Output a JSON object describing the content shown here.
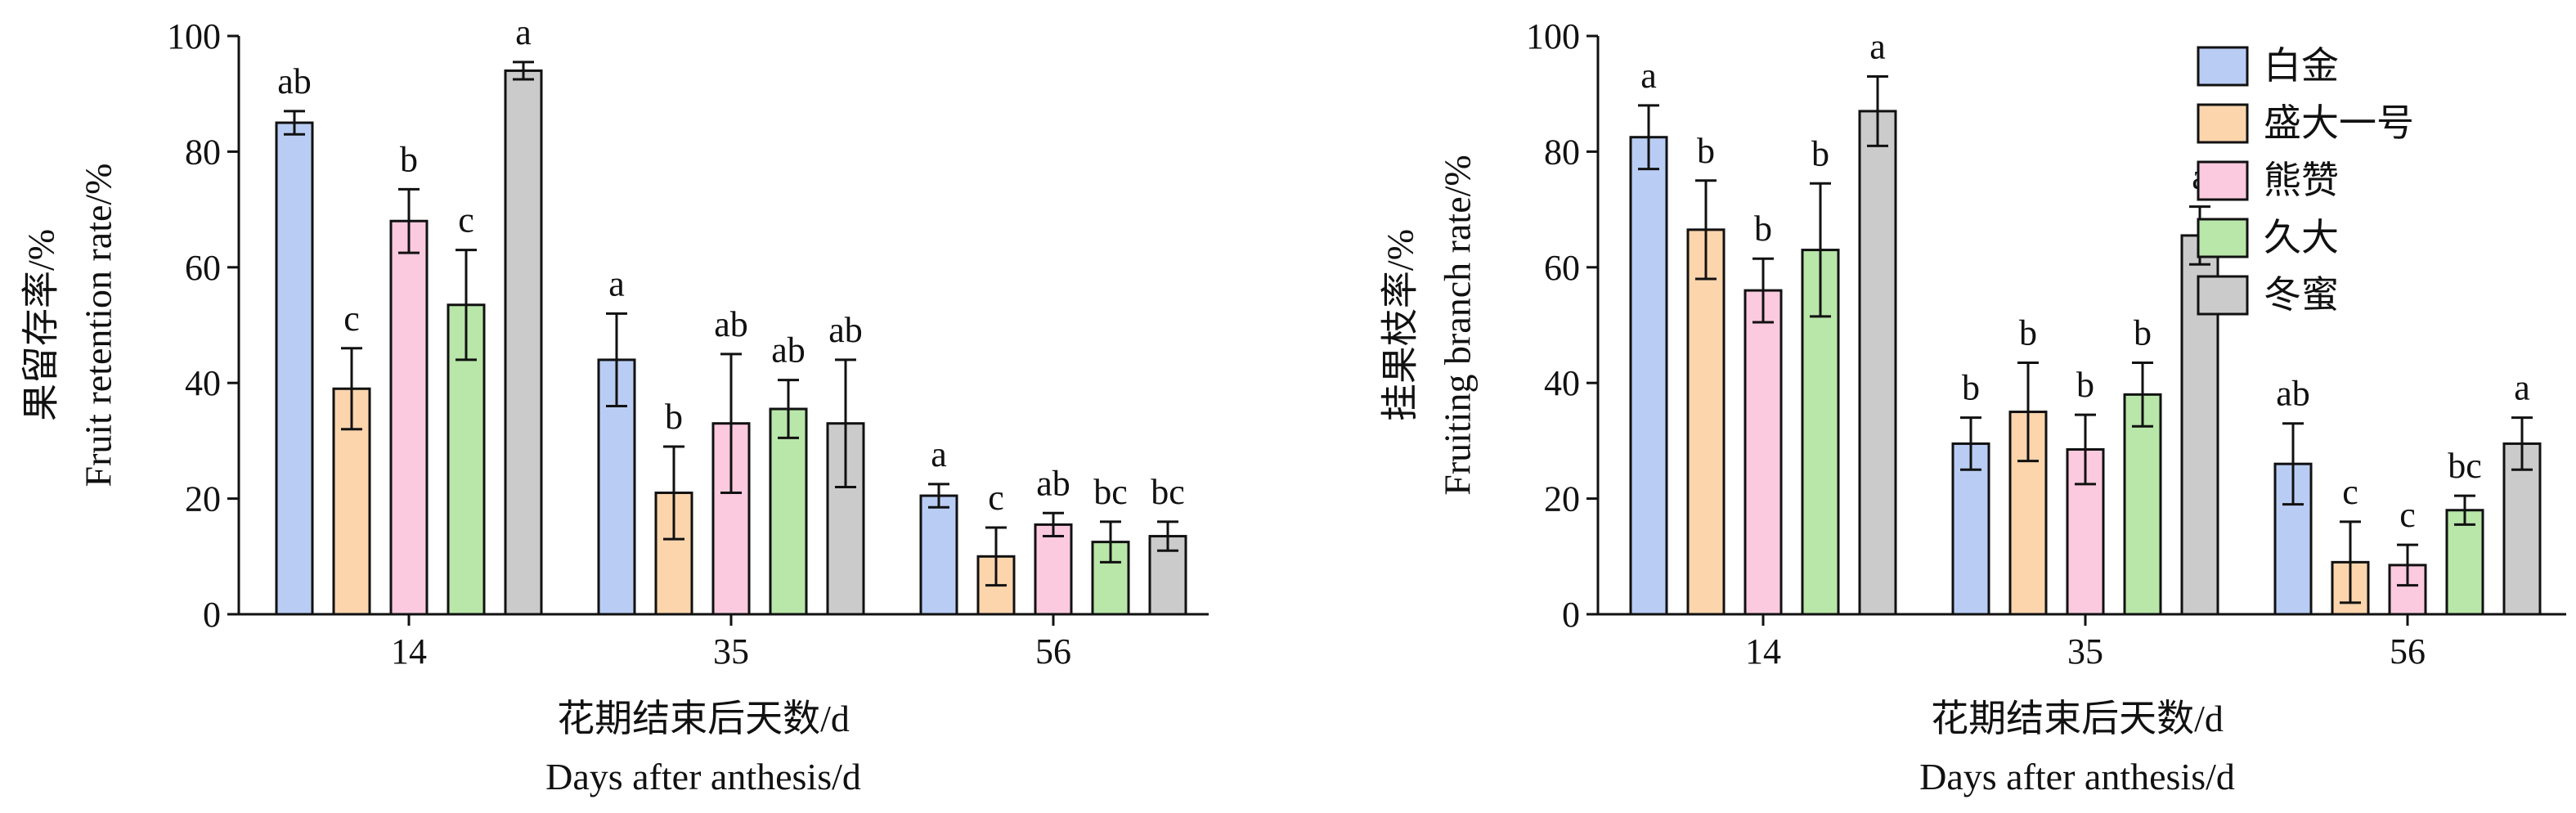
{
  "chart_data": [
    {
      "type": "bar",
      "ylabel_cn": "果留存率/%",
      "ylabel_en": "Fruit retention rate/%",
      "xlabel_cn": "花期结束后天数/d",
      "xlabel_en": "Days after anthesis/d",
      "ylim": [
        0,
        100
      ],
      "yticks": [
        "0",
        "20",
        "40",
        "60",
        "80",
        "100"
      ],
      "categories": [
        "14",
        "35",
        "56"
      ],
      "series": [
        {
          "name": "白金",
          "color": "#b9cdf4",
          "values": [
            85,
            44,
            20.5
          ],
          "errors": [
            2,
            8,
            2
          ],
          "letters": [
            "ab",
            "a",
            "a"
          ]
        },
        {
          "name": "盛大一号",
          "color": "#fcd5ad",
          "values": [
            39,
            21,
            10
          ],
          "errors": [
            7,
            8,
            5
          ],
          "letters": [
            "c",
            "b",
            "c"
          ]
        },
        {
          "name": "熊赞",
          "color": "#fbcade",
          "values": [
            68,
            33,
            15.5
          ],
          "errors": [
            5.5,
            12,
            2
          ],
          "letters": [
            "b",
            "ab",
            "ab"
          ]
        },
        {
          "name": "久大",
          "color": "#b9e6a9",
          "values": [
            53.5,
            35.5,
            12.5
          ],
          "errors": [
            9.5,
            5,
            3.5
          ],
          "letters": [
            "c",
            "ab",
            "bc"
          ]
        },
        {
          "name": "冬蜜",
          "color": "#cbcbcb",
          "values": [
            94,
            33,
            13.5
          ],
          "errors": [
            1.5,
            11,
            2.5
          ],
          "letters": [
            "a",
            "ab",
            "bc"
          ]
        }
      ]
    },
    {
      "type": "bar",
      "ylabel_cn": "挂果枝率/%",
      "ylabel_en": "Fruiting branch rate/%",
      "xlabel_cn": "花期结束后天数/d",
      "xlabel_en": "Days after anthesis/d",
      "ylim": [
        0,
        100
      ],
      "yticks": [
        "0",
        "20",
        "40",
        "60",
        "80",
        "100"
      ],
      "categories": [
        "14",
        "35",
        "56"
      ],
      "legend": "top-right",
      "series": [
        {
          "name": "白金",
          "color": "#b9cdf4",
          "values": [
            82.5,
            29.5,
            26
          ],
          "errors": [
            5.5,
            4.5,
            7
          ],
          "letters": [
            "a",
            "b",
            "ab"
          ]
        },
        {
          "name": "盛大一号",
          "color": "#fcd5ad",
          "values": [
            66.5,
            35,
            9
          ],
          "errors": [
            8.5,
            8.5,
            7
          ],
          "letters": [
            "b",
            "b",
            "c"
          ]
        },
        {
          "name": "熊赞",
          "color": "#fbcade",
          "values": [
            56,
            28.5,
            8.5
          ],
          "errors": [
            5.5,
            6,
            3.5
          ],
          "letters": [
            "b",
            "b",
            "c"
          ]
        },
        {
          "name": "久大",
          "color": "#b9e6a9",
          "values": [
            63,
            38,
            18
          ],
          "errors": [
            11.5,
            5.5,
            2.5
          ],
          "letters": [
            "b",
            "b",
            "bc"
          ]
        },
        {
          "name": "冬蜜",
          "color": "#cbcbcb",
          "values": [
            87,
            65.5,
            29.5
          ],
          "errors": [
            6,
            5,
            4.5
          ],
          "letters": [
            "a",
            "a",
            "a"
          ]
        }
      ]
    }
  ]
}
